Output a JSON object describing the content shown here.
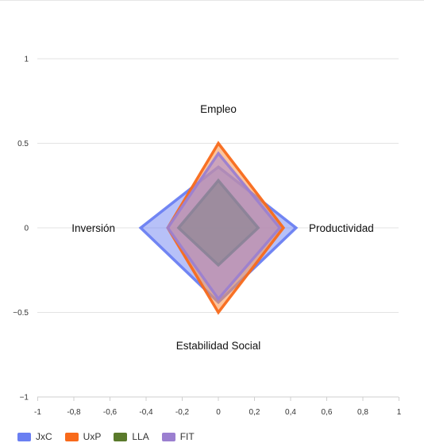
{
  "chart_data": {
    "type": "radar",
    "axes": [
      "Empleo",
      "Productividad",
      "Estabilidad Social",
      "Inversión"
    ],
    "series": [
      {
        "name": "JxC",
        "values": [
          0.36,
          0.43,
          0.44,
          0.43
        ],
        "color": "#6a7ff2",
        "fill": "#7b8ef3"
      },
      {
        "name": "UxP",
        "values": [
          0.5,
          0.36,
          0.5,
          0.28
        ],
        "color": "#f86a1b",
        "fill": "#f8944c"
      },
      {
        "name": "LLA",
        "values": [
          0.28,
          0.22,
          0.22,
          0.22
        ],
        "color": "#6b7a50",
        "fill": "#5a7a2b"
      },
      {
        "name": "FIT",
        "values": [
          0.44,
          0.34,
          0.42,
          0.28
        ],
        "color": "#9b7fd0",
        "fill": "#a58ad4"
      }
    ],
    "xlim": [
      -1,
      1
    ],
    "ylim": [
      -1,
      1
    ],
    "x_ticks": [
      "-1",
      "-0,8",
      "-0,6",
      "-0,4",
      "-0,2",
      "0",
      "0,2",
      "0,4",
      "0,6",
      "0,8",
      "1"
    ],
    "y_ticks": [
      "1",
      "0.5",
      "0",
      "−0.5",
      "−1"
    ],
    "grid": "horizontal",
    "legend_position": "bottom-left"
  }
}
